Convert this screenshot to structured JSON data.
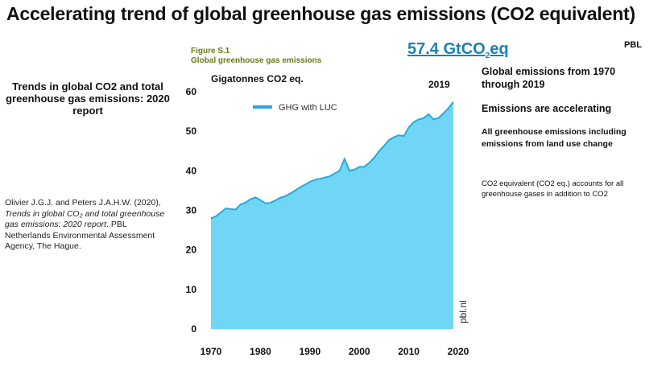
{
  "main_title": "Accelerating trend of global greenhouse gas emissions (CO2 equivalent)",
  "pbl_tag": "PBL",
  "figure_number": "Figure S.1",
  "figure_title": "Global greenhouse gas emissions",
  "headline_value": {
    "number": "57.4 GtCO",
    "sub": "2",
    "unit": "eq"
  },
  "left_title": "Trends in global CO2 and total greenhouse gas emissions: 2020 report",
  "citation": {
    "authors": "Olivier J.G.J. and Peters J.A.H.W. (2020),",
    "title": "Trends in global CO₂ and total greenhouse gas emissions: 2020 report",
    "publisher": ". PBL Netherlands Environmental Assessment Agency, The Hague."
  },
  "notes": {
    "global_span": "Global emissions from 1970 through 2019",
    "accelerating": "Emissions are accelerating",
    "scope": "All greenhouse emissions including emissions from land use change",
    "co2eq": "CO2 equivalent (CO2 eq.) accounts for all greenhouse gases in addition  to CO2"
  },
  "colors": {
    "area_fill": "#6fd6f5",
    "line": "#2aa8d8",
    "figure_text": "#6b7a1a",
    "headline": "#1f7fb3"
  },
  "chart_data": {
    "type": "area",
    "ylabel": "Gigatonnes CO2 eq.",
    "xticks": [
      1970,
      1980,
      1990,
      2000,
      2010,
      2020
    ],
    "yticks": [
      0,
      10,
      20,
      30,
      40,
      50,
      60
    ],
    "xlim": [
      1970,
      2020
    ],
    "ylim": [
      0,
      60
    ],
    "end_label": "2019",
    "watermark": "pbl.nl",
    "legend_position": "top-left",
    "series": [
      {
        "name": "GHG with LUC",
        "x": [
          1970,
          1971,
          1972,
          1973,
          1974,
          1975,
          1976,
          1977,
          1978,
          1979,
          1980,
          1981,
          1982,
          1983,
          1984,
          1985,
          1986,
          1987,
          1988,
          1989,
          1990,
          1991,
          1992,
          1993,
          1994,
          1995,
          1996,
          1997,
          1998,
          1999,
          2000,
          2001,
          2002,
          2003,
          2004,
          2005,
          2006,
          2007,
          2008,
          2009,
          2010,
          2011,
          2012,
          2013,
          2014,
          2015,
          2016,
          2017,
          2018,
          2019
        ],
        "values": [
          28.0,
          28.5,
          29.5,
          30.5,
          30.3,
          30.2,
          31.5,
          32.0,
          32.8,
          33.3,
          32.6,
          31.8,
          31.9,
          32.5,
          33.2,
          33.6,
          34.2,
          35.0,
          35.8,
          36.5,
          37.2,
          37.7,
          38.0,
          38.3,
          38.6,
          39.3,
          40.0,
          43.0,
          40.0,
          40.3,
          41.0,
          41.0,
          42.0,
          43.3,
          45.0,
          46.3,
          47.8,
          48.5,
          49.0,
          48.8,
          51.0,
          52.3,
          53.0,
          53.3,
          54.3,
          53.0,
          53.3,
          54.5,
          55.8,
          57.4
        ]
      }
    ]
  }
}
